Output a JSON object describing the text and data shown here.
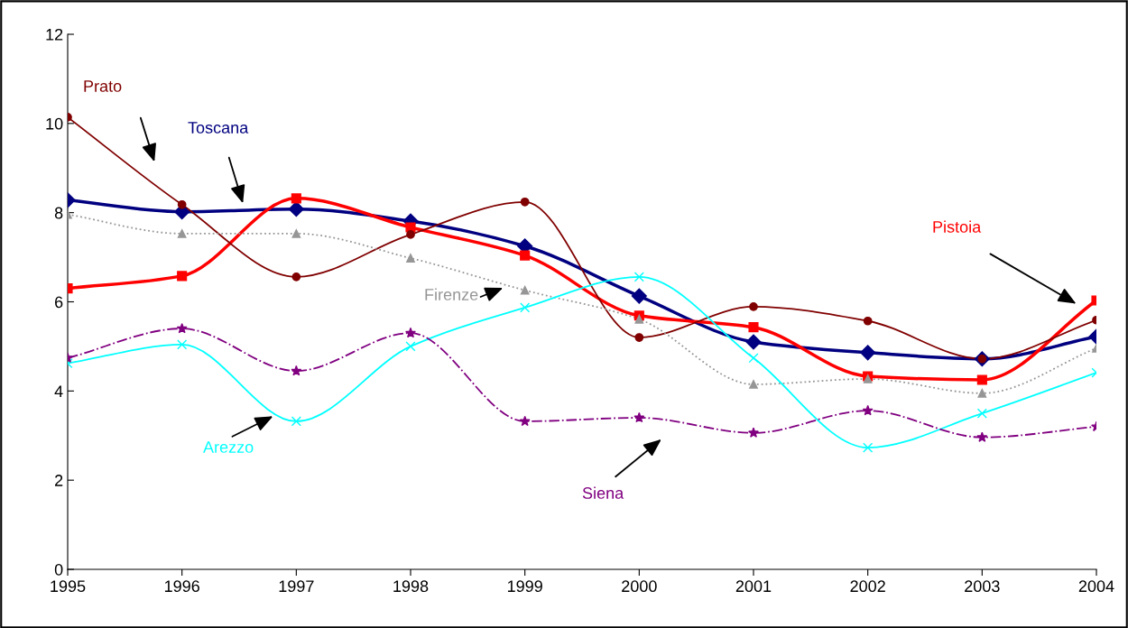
{
  "chart_data": {
    "type": "line",
    "x": [
      1995,
      1996,
      1997,
      1998,
      1999,
      2000,
      2001,
      2002,
      2003,
      2004
    ],
    "series": [
      {
        "name": "Toscana",
        "color": "#000080",
        "marker": "diamond",
        "line_style": "solid",
        "values": [
          8.28,
          8.02,
          8.08,
          7.81,
          7.25,
          6.13,
          5.1,
          4.86,
          4.72,
          5.22
        ]
      },
      {
        "name": "Pistoia",
        "color": "#ff0000",
        "marker": "square",
        "line_style": "solid",
        "values": [
          6.3,
          6.58,
          8.32,
          7.67,
          7.04,
          5.69,
          5.43,
          4.33,
          4.25,
          6.03
        ]
      },
      {
        "name": "Prato",
        "color": "#800000",
        "marker": "circle",
        "line_style": "solid",
        "values": [
          10.14,
          8.18,
          6.56,
          7.51,
          8.24,
          5.2,
          5.89,
          5.57,
          4.72,
          5.59
        ]
      },
      {
        "name": "Firenze",
        "color": "#969696",
        "marker": "triangle",
        "line_style": "dotted",
        "values": [
          7.96,
          7.53,
          7.53,
          6.98,
          6.26,
          5.61,
          4.15,
          4.27,
          3.95,
          4.96
        ]
      },
      {
        "name": "Arezzo",
        "color": "#00ffff",
        "marker": "cross",
        "line_style": "solid",
        "values": [
          4.62,
          5.04,
          3.32,
          5.0,
          5.87,
          6.56,
          4.74,
          2.73,
          3.5,
          4.41
        ]
      },
      {
        "name": "Siena",
        "color": "#800080",
        "marker": "star",
        "line_style": "dashdot",
        "values": [
          4.74,
          5.4,
          4.45,
          5.3,
          3.32,
          3.4,
          3.06,
          3.56,
          2.96,
          3.2
        ]
      }
    ],
    "xlim": [
      1995,
      2004
    ],
    "xticks": [
      1995,
      1996,
      1997,
      1998,
      1999,
      2000,
      2001,
      2002,
      2003,
      2004
    ],
    "ylim": [
      0,
      12
    ],
    "yticks": [
      0,
      2,
      4,
      6,
      8,
      10,
      12
    ],
    "grid": false,
    "legend": false
  }
}
